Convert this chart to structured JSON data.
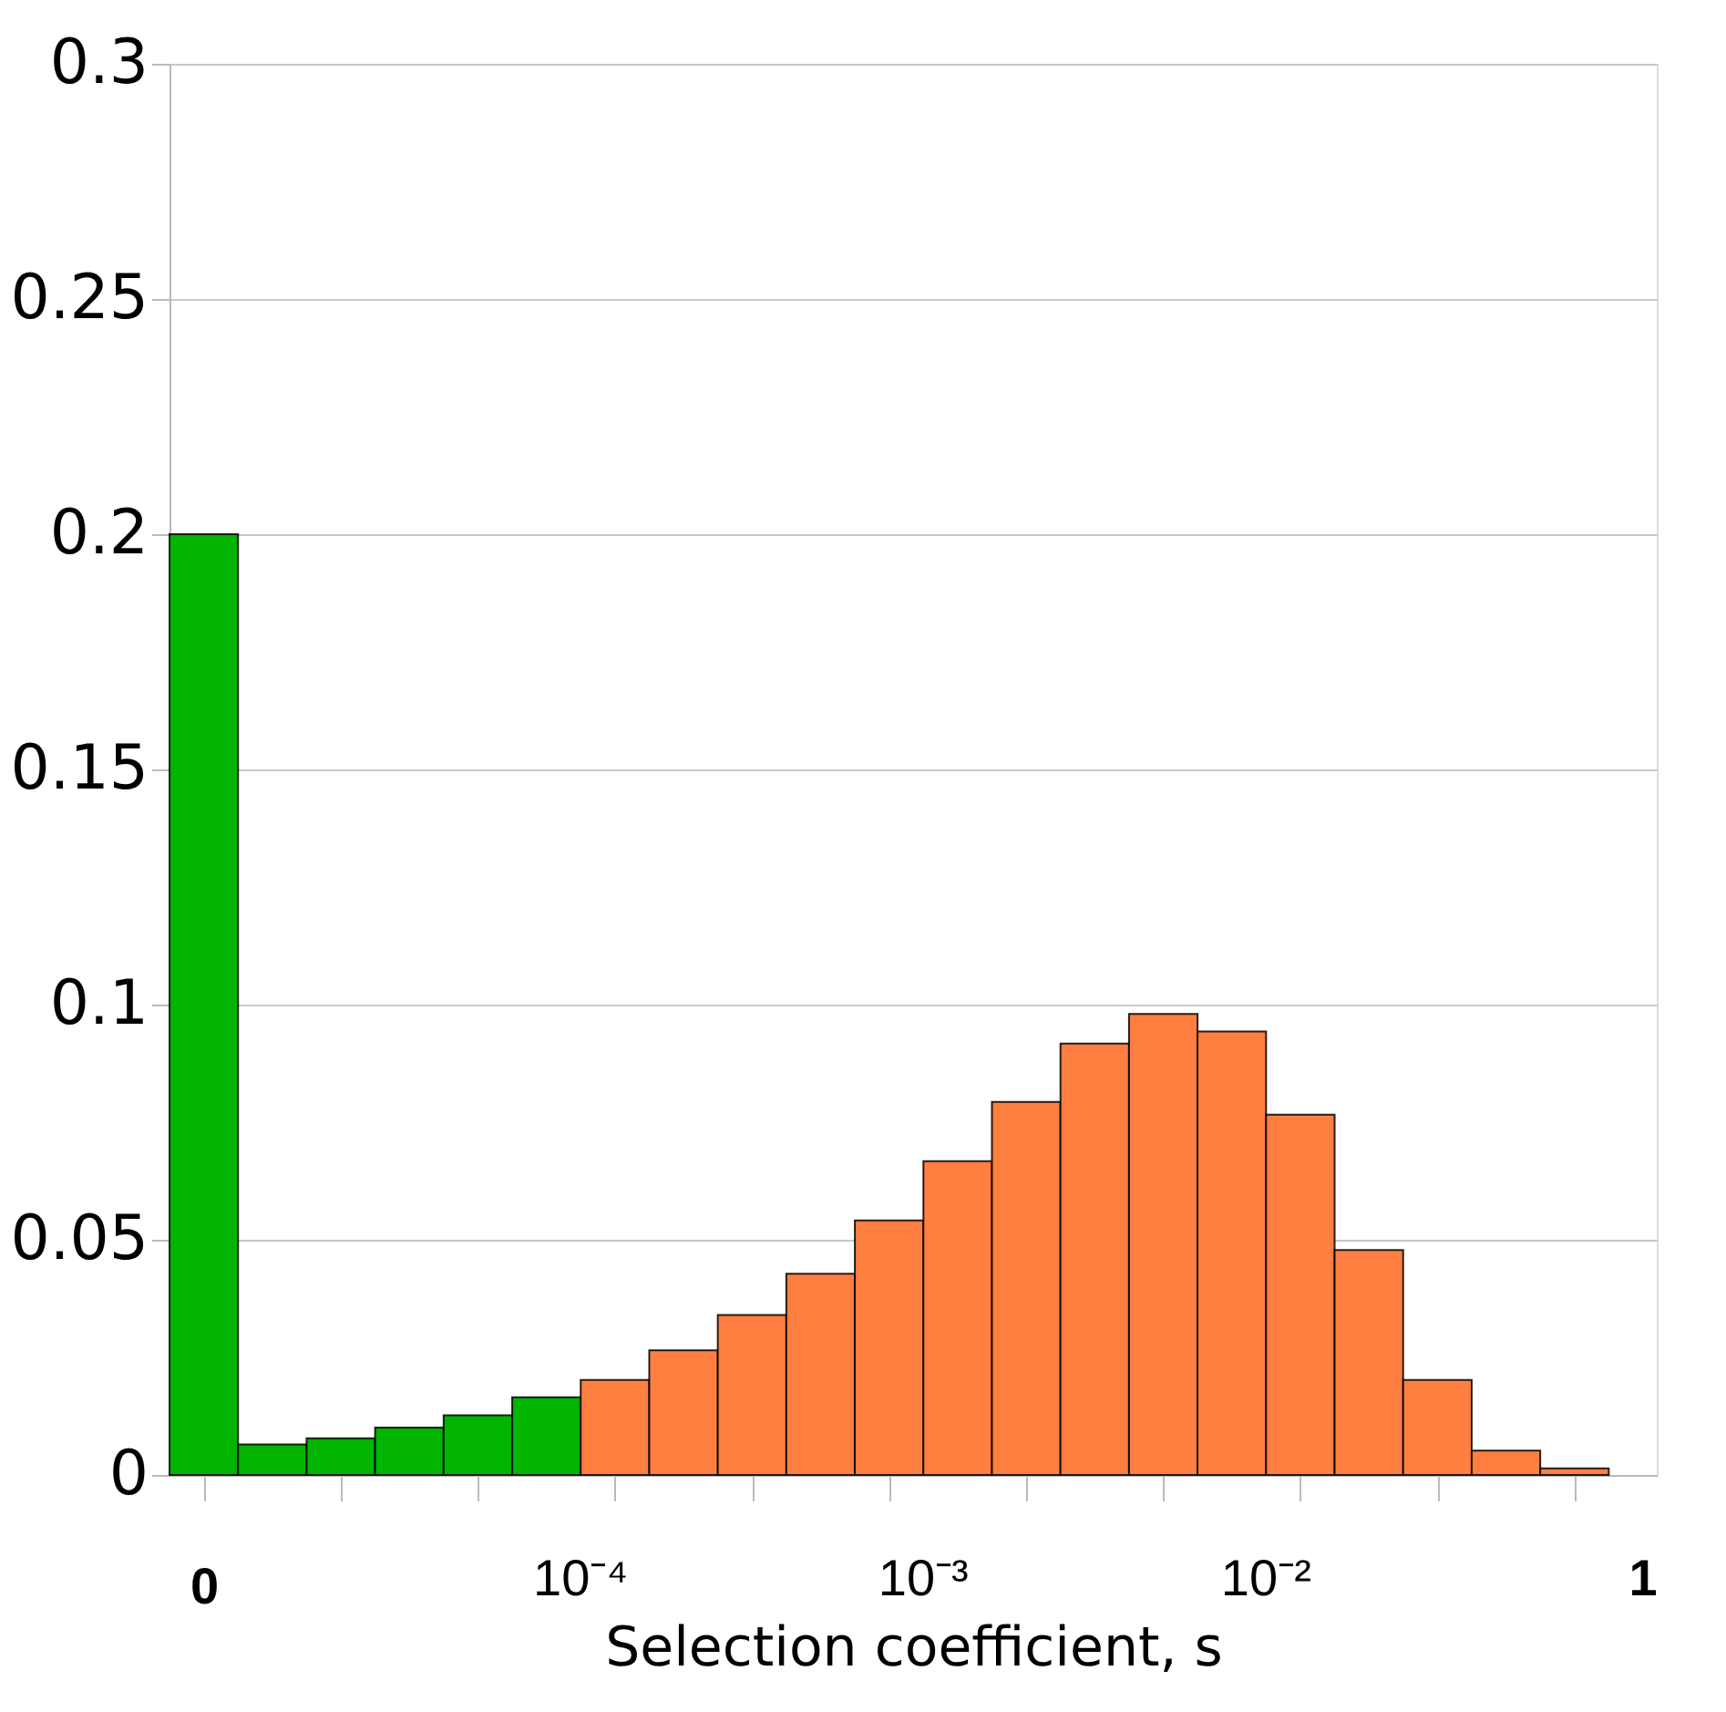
{
  "chart_data": {
    "type": "bar",
    "xlabel": "Selection coefficient, s",
    "categories": [
      "0",
      null,
      null,
      null,
      null,
      null,
      null,
      null,
      null,
      null,
      null,
      null,
      null,
      null,
      null,
      null,
      null,
      null,
      null,
      null,
      null
    ],
    "values": [
      0.2,
      0.0065,
      0.0078,
      0.0101,
      0.0127,
      0.0165,
      0.0202,
      0.0265,
      0.034,
      0.0428,
      0.0541,
      0.0667,
      0.0793,
      0.0917,
      0.098,
      0.0943,
      0.0766,
      0.0478,
      0.0202,
      0.0052,
      0.0014
    ],
    "colors": [
      "#00b400",
      "#00b400",
      "#00b400",
      "#00b400",
      "#00b400",
      "#00b400",
      "#ff7f40",
      "#ff7f40",
      "#ff7f40",
      "#ff7f40",
      "#ff7f40",
      "#ff7f40",
      "#ff7f40",
      "#ff7f40",
      "#ff7f40",
      "#ff7f40",
      "#ff7f40",
      "#ff7f40",
      "#ff7f40",
      "#ff7f40",
      "#ff7f40"
    ],
    "annotations": [
      "10⁻⁴",
      "10⁻³",
      "10⁻²",
      "1"
    ],
    "ylim": [
      0,
      0.3
    ],
    "yticks": [
      0,
      0.05,
      0.1,
      0.15,
      0.2,
      0.25,
      0.3
    ],
    "grid": "y"
  }
}
